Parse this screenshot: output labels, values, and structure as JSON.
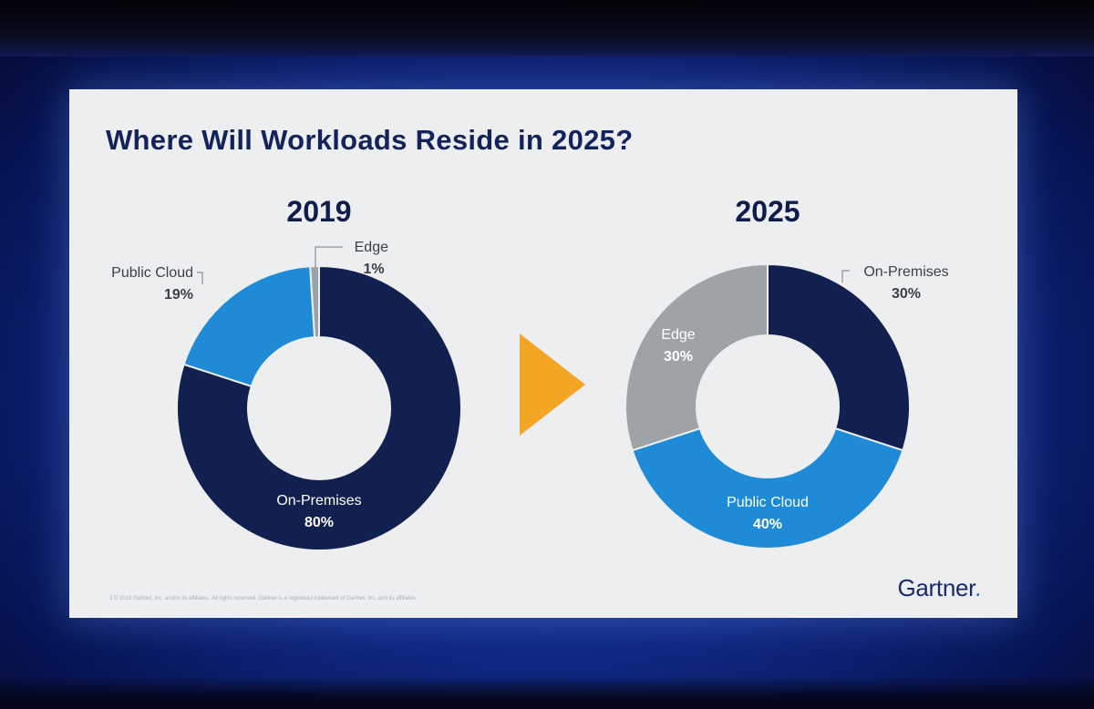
{
  "slide": {
    "title": "Where Will Workloads Reside in 2025?",
    "footnote": "3    © 2019 Gartner, Inc. and/or its affiliates. All rights reserved. Gartner is a registered trademark of Gartner, Inc. and its affiliates.",
    "logo": "Gartner",
    "logo_dot": ".",
    "arrow_color": "#f3a623"
  },
  "chart_data": [
    {
      "type": "pie",
      "title": "2019",
      "variant": "donut",
      "slices": [
        {
          "name": "On-Premises",
          "value": 80,
          "value_label": "80%",
          "color": "#12204f",
          "label_color": "#ffffff"
        },
        {
          "name": "Public Cloud",
          "value": 19,
          "value_label": "19%",
          "color": "#1f8ad6",
          "label_color": "#3a3f48"
        },
        {
          "name": "Edge",
          "value": 1,
          "value_label": "1%",
          "color": "#9aa2aa",
          "label_color": "#3a3f48"
        }
      ]
    },
    {
      "type": "pie",
      "title": "2025",
      "variant": "donut",
      "slices": [
        {
          "name": "On-Premises",
          "value": 30,
          "value_label": "30%",
          "color": "#12204f",
          "label_color": "#3a3f48"
        },
        {
          "name": "Public Cloud",
          "value": 40,
          "value_label": "40%",
          "color": "#1f8ad6",
          "label_color": "#ffffff"
        },
        {
          "name": "Edge",
          "value": 30,
          "value_label": "30%",
          "color": "#9ea3a8",
          "label_color": "#ffffff"
        }
      ]
    }
  ]
}
